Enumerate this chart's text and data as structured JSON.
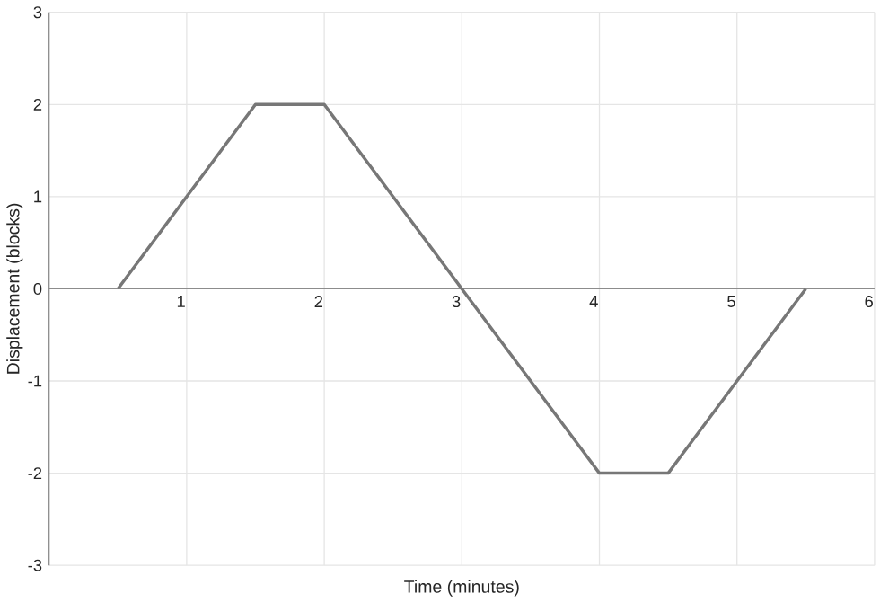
{
  "chart_data": {
    "type": "line",
    "xlabel": "Time (minutes)",
    "ylabel": "Displacement (blocks)",
    "x": [
      0.5,
      1.5,
      2,
      3,
      4,
      4.5,
      5.5
    ],
    "series": [
      {
        "color": "#777777",
        "values": [
          0,
          2,
          2,
          0,
          -2,
          -2,
          0
        ]
      }
    ],
    "xlim": [
      0,
      6
    ],
    "ylim": [
      -3,
      3
    ],
    "xticks": [
      {
        "value": 0,
        "label": null
      },
      1,
      2,
      3,
      4,
      5,
      6
    ],
    "yticks": [
      -3,
      -2,
      -1,
      0,
      1,
      2,
      3
    ],
    "grid": true,
    "marker": "none",
    "line_style": "solid"
  }
}
